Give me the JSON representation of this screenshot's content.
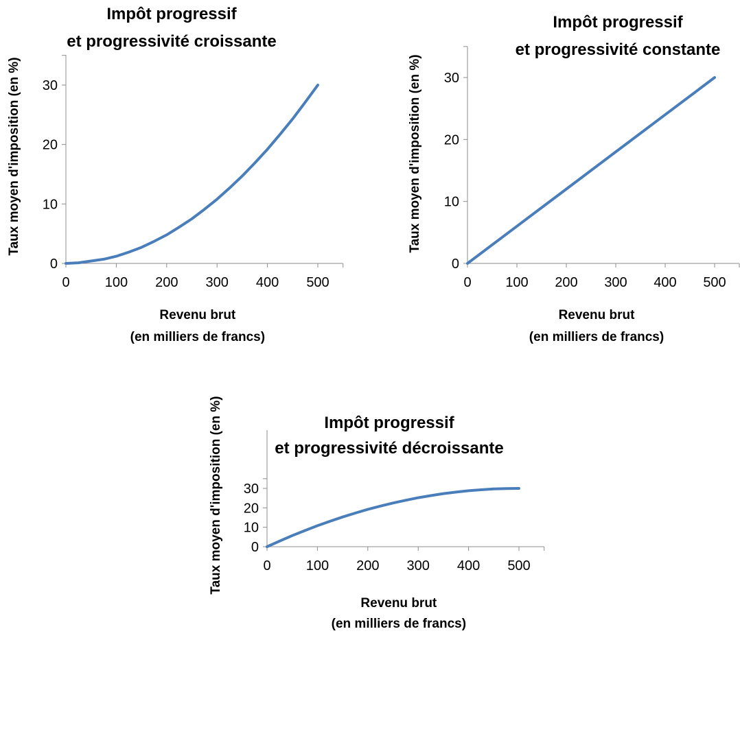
{
  "chart_data": [
    {
      "type": "line",
      "title": [
        "Impôt progressif",
        "et progressivité croissante"
      ],
      "xlabel": [
        "Revenu brut",
        "(en milliers de francs)"
      ],
      "ylabel": "Taux moyen d'imposition (en %)",
      "xlim": [
        0,
        550
      ],
      "ylim": [
        0,
        35
      ],
      "xticks": [
        "0",
        "100",
        "200",
        "300",
        "400",
        "500"
      ],
      "yticks": [
        "0",
        "10",
        "20",
        "30"
      ],
      "grid": false,
      "color": "#4a7ebb",
      "series": [
        {
          "x": [
            0,
            25,
            50,
            75,
            100,
            125,
            150,
            175,
            200,
            225,
            250,
            275,
            300,
            325,
            350,
            375,
            400,
            425,
            450,
            475,
            500
          ],
          "values": [
            0,
            0.1,
            0.4,
            0.7,
            1.2,
            1.9,
            2.7,
            3.7,
            4.8,
            6.1,
            7.5,
            9.1,
            10.8,
            12.7,
            14.7,
            16.9,
            19.2,
            21.7,
            24.3,
            27.1,
            30
          ]
        }
      ]
    },
    {
      "type": "line",
      "title": [
        "Impôt progressif",
        "et progressivité constante"
      ],
      "xlabel": [
        "Revenu brut",
        "(en milliers de francs)"
      ],
      "ylabel": "Taux moyen d'imposition (en %)",
      "xlim": [
        0,
        550
      ],
      "ylim": [
        0,
        35
      ],
      "xticks": [
        "0",
        "100",
        "200",
        "300",
        "400",
        "500"
      ],
      "yticks": [
        "0",
        "10",
        "20",
        "30"
      ],
      "grid": false,
      "color": "#4a7ebb",
      "series": [
        {
          "x": [
            0,
            100,
            200,
            300,
            400,
            500
          ],
          "values": [
            0,
            6,
            12,
            18,
            24,
            30
          ]
        }
      ]
    },
    {
      "type": "line",
      "title": [
        "Impôt progressif",
        "et progressivité décroissante"
      ],
      "xlabel": [
        "Revenu brut",
        "(en milliers de francs)"
      ],
      "ylabel": "Taux moyen d'imposition (en %)",
      "xlim": [
        0,
        550
      ],
      "ylim": [
        0,
        35
      ],
      "xticks": [
        "0",
        "100",
        "200",
        "300",
        "400",
        "500"
      ],
      "yticks": [
        "0",
        "10",
        "20",
        "30"
      ],
      "grid": false,
      "color": "#4a7ebb",
      "series": [
        {
          "x": [
            0,
            25,
            50,
            75,
            100,
            125,
            150,
            175,
            200,
            225,
            250,
            275,
            300,
            325,
            350,
            375,
            400,
            425,
            450,
            475,
            500
          ],
          "values": [
            0,
            2.9,
            5.7,
            8.3,
            10.8,
            13.1,
            15.3,
            17.3,
            19.2,
            20.9,
            22.5,
            23.9,
            25.2,
            26.3,
            27.3,
            28.1,
            28.8,
            29.3,
            29.7,
            29.9,
            30
          ]
        }
      ]
    }
  ]
}
